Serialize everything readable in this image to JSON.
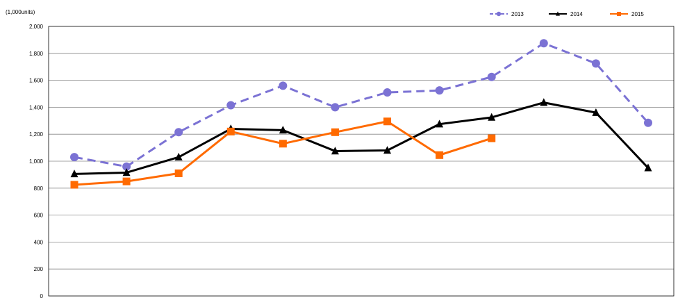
{
  "chart_data": {
    "type": "line",
    "unit_label": "(1,000units)",
    "ylim": [
      0,
      2000
    ],
    "yticks": [
      0,
      200,
      400,
      600,
      800,
      1000,
      1200,
      1400,
      1600,
      1800,
      2000
    ],
    "ytick_labels": [
      "0",
      "200",
      "400",
      "600",
      "800",
      "1,000",
      "1,200",
      "1,400",
      "1,600",
      "1,800",
      "2,000"
    ],
    "grid": true,
    "legend_position": "top-right",
    "categories": [
      "",
      "",
      "",
      "",
      "",
      "",
      "",
      "",
      "",
      "",
      "",
      ""
    ],
    "series": [
      {
        "name": "2013",
        "color": "#7b72d4",
        "marker": "circle",
        "line_style": "dashed",
        "values": [
          1030,
          960,
          1215,
          1415,
          1560,
          1400,
          1510,
          1525,
          1625,
          1875,
          1725,
          1285
        ]
      },
      {
        "name": "2014",
        "color": "#000000",
        "marker": "triangle",
        "line_style": "solid",
        "values": [
          905,
          915,
          1030,
          1240,
          1230,
          1075,
          1080,
          1275,
          1325,
          1435,
          1360,
          950
        ]
      },
      {
        "name": "2015",
        "color": "#ff6a00",
        "marker": "square",
        "line_style": "solid",
        "values": [
          825,
          850,
          910,
          1220,
          1130,
          1215,
          1295,
          1045,
          1170,
          null,
          null,
          null
        ]
      }
    ]
  }
}
